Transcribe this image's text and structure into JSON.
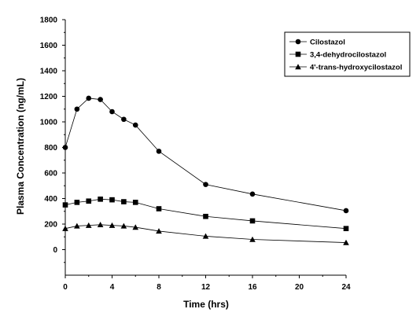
{
  "chart_data": {
    "type": "line",
    "title": "",
    "xlabel": "Time (hrs)",
    "ylabel": "Plasma Concentration (ng/mL)",
    "xlim": [
      0,
      24
    ],
    "ylim": [
      -200,
      1800
    ],
    "x_ticks": [
      0,
      4,
      8,
      12,
      16,
      20,
      24
    ],
    "y_ticks": [
      0,
      200,
      400,
      600,
      800,
      1000,
      1200,
      1400,
      1600,
      1800
    ],
    "grid": false,
    "legend_position": "top-right",
    "series": [
      {
        "name": "Cilostazol",
        "marker": "circle",
        "color": "#000000",
        "x": [
          0,
          1,
          2,
          3,
          4,
          5,
          6,
          8,
          12,
          16,
          24
        ],
        "y": [
          800,
          1100,
          1185,
          1175,
          1080,
          1020,
          975,
          770,
          510,
          435,
          305
        ]
      },
      {
        "name": "3,4-dehydrocilostazol",
        "marker": "square",
        "color": "#000000",
        "x": [
          0,
          1,
          2,
          3,
          4,
          5,
          6,
          8,
          12,
          16,
          24
        ],
        "y": [
          350,
          370,
          380,
          395,
          390,
          375,
          370,
          320,
          260,
          225,
          165
        ]
      },
      {
        "name": "4'-trans-hydroxycilostazol",
        "marker": "triangle",
        "color": "#000000",
        "x": [
          0,
          1,
          2,
          3,
          4,
          5,
          6,
          8,
          12,
          16,
          24
        ],
        "y": [
          165,
          185,
          190,
          195,
          190,
          185,
          175,
          145,
          105,
          80,
          55
        ]
      }
    ]
  }
}
